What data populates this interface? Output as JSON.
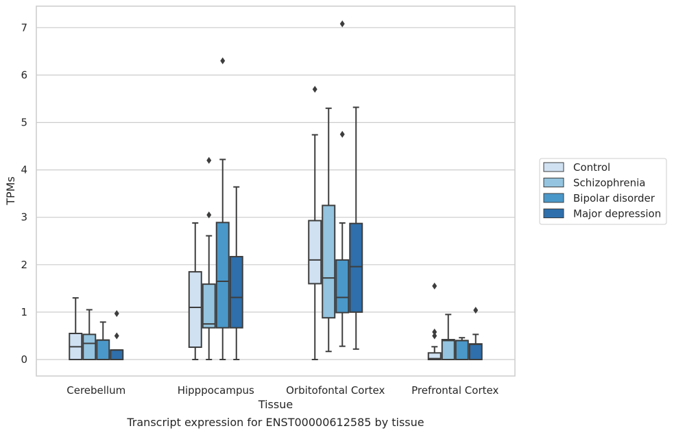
{
  "caption": "Transcript expression for ENST00000612585 by tissue",
  "colors": {
    "Control": "#d0e1f2",
    "Schizophrenia": "#94c4df",
    "Bipolar disorder": "#4a98c9",
    "Major depression": "#2e6fac",
    "box_edge": "#3d3d3d",
    "grid": "#cccccc",
    "frame": "#cccccc"
  },
  "chart_data": {
    "type": "box",
    "xlabel": "Tissue",
    "ylabel": "TPMs",
    "ylim": [
      -0.35,
      7.45
    ],
    "yticks": [
      0,
      1,
      2,
      3,
      4,
      5,
      6,
      7
    ],
    "grid": true,
    "legend_position": "right",
    "categories": [
      "Cerebellum",
      "Hipppocampus",
      "Orbitofontal Cortex",
      "Prefrontal Cortex"
    ],
    "series": [
      {
        "name": "Control",
        "boxes": [
          {
            "whislo": 0,
            "q1": 0,
            "med": 0.27,
            "q3": 0.55,
            "whishi": 1.3,
            "fliers": []
          },
          {
            "whislo": 0,
            "q1": 0.26,
            "med": 1.1,
            "q3": 1.85,
            "whishi": 2.88,
            "fliers": []
          },
          {
            "whislo": 0,
            "q1": 1.6,
            "med": 2.1,
            "q3": 2.93,
            "whishi": 4.74,
            "fliers": [
              5.7
            ]
          },
          {
            "whislo": 0,
            "q1": 0,
            "med": 0.02,
            "q3": 0.14,
            "whishi": 0.27,
            "fliers": [
              0.5,
              0.58,
              1.55
            ]
          }
        ]
      },
      {
        "name": "Schizophrenia",
        "boxes": [
          {
            "whislo": 0,
            "q1": 0,
            "med": 0.34,
            "q3": 0.53,
            "whishi": 1.05,
            "fliers": []
          },
          {
            "whislo": 0,
            "q1": 0.67,
            "med": 0.75,
            "q3": 1.59,
            "whishi": 2.61,
            "fliers": [
              3.05,
              4.2
            ]
          },
          {
            "whislo": 0.17,
            "q1": 0.88,
            "med": 1.72,
            "q3": 3.25,
            "whishi": 5.3,
            "fliers": []
          },
          {
            "whislo": 0,
            "q1": 0,
            "med": 0.4,
            "q3": 0.42,
            "whishi": 0.95,
            "fliers": []
          }
        ]
      },
      {
        "name": "Bipolar disorder",
        "boxes": [
          {
            "whislo": 0,
            "q1": 0,
            "med": 0.41,
            "q3": 0.41,
            "whishi": 0.79,
            "fliers": []
          },
          {
            "whislo": 0,
            "q1": 0.67,
            "med": 1.65,
            "q3": 2.89,
            "whishi": 4.22,
            "fliers": [
              6.3
            ]
          },
          {
            "whislo": 0.28,
            "q1": 0.99,
            "med": 1.31,
            "q3": 2.1,
            "whishi": 2.88,
            "fliers": [
              4.75,
              7.08
            ]
          },
          {
            "whislo": 0,
            "q1": 0,
            "med": 0.4,
            "q3": 0.4,
            "whishi": 0.46,
            "fliers": []
          }
        ]
      },
      {
        "name": "Major depression",
        "boxes": [
          {
            "whislo": 0,
            "q1": 0,
            "med": 0.2,
            "q3": 0.2,
            "whishi": 0.2,
            "fliers": [
              0.5,
              0.97
            ]
          },
          {
            "whislo": 0,
            "q1": 0.67,
            "med": 1.31,
            "q3": 2.17,
            "whishi": 3.64,
            "fliers": []
          },
          {
            "whislo": 0.22,
            "q1": 1.0,
            "med": 1.96,
            "q3": 2.87,
            "whishi": 5.32,
            "fliers": []
          },
          {
            "whislo": 0,
            "q1": 0,
            "med": 0.32,
            "q3": 0.33,
            "whishi": 0.53,
            "fliers": [
              1.04
            ]
          }
        ]
      }
    ]
  }
}
